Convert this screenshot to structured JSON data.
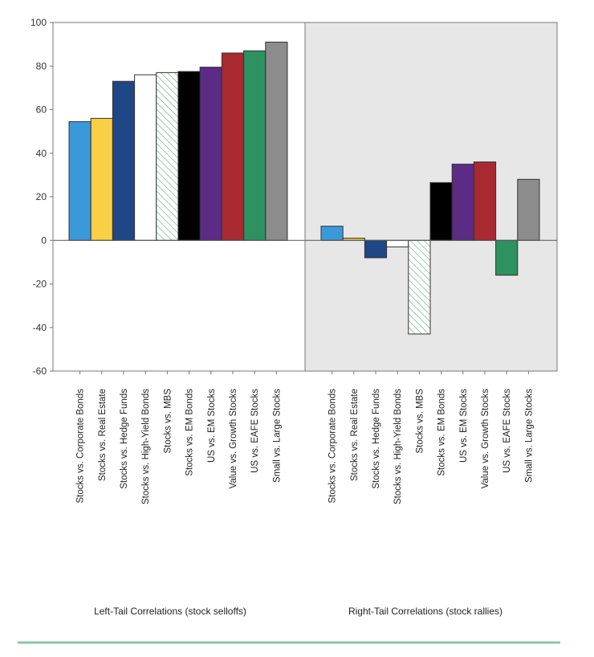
{
  "chart_data": {
    "type": "bar",
    "ylim": [
      -60,
      100
    ],
    "yticks": [
      "100",
      "80",
      "60",
      "40",
      "20",
      "0",
      "-20",
      "-40",
      "-60"
    ],
    "grid": false,
    "categories": [
      "Stocks vs. Corporate Bonds",
      "Stocks vs. Real Estate",
      "Stocks vs. Hedge Funds",
      "Stocks vs. High-Yield Bonds",
      "Stocks vs. MBS",
      "Stocks vs. EM Bonds",
      "US vs. EM Stocks",
      "Value vs. Growth Stocks",
      "US vs. EAFE Stocks",
      "Small vs. Large Stocks"
    ],
    "colors": [
      "#3a9ad9",
      "#f9cf45",
      "#1f4788",
      "#ffffff",
      "hatch",
      "#000000",
      "#5b2b86",
      "#a82a30",
      "#2e9160",
      "#8c8c8d"
    ],
    "panels": [
      {
        "name": "left",
        "title": "Left-Tail Correlations (stock selloffs)",
        "values": [
          54.5,
          56,
          73,
          76,
          77,
          77.5,
          79.5,
          86,
          87,
          91
        ],
        "background": "#ffffff"
      },
      {
        "name": "right",
        "title": "Right-Tail Correlations (stock rallies)",
        "values": [
          6.5,
          1,
          -8,
          -3,
          -43,
          26.5,
          35,
          36,
          -16,
          28
        ],
        "background": "#e7e7e8"
      }
    ],
    "footer_rule_color": "#8fc6a6"
  }
}
